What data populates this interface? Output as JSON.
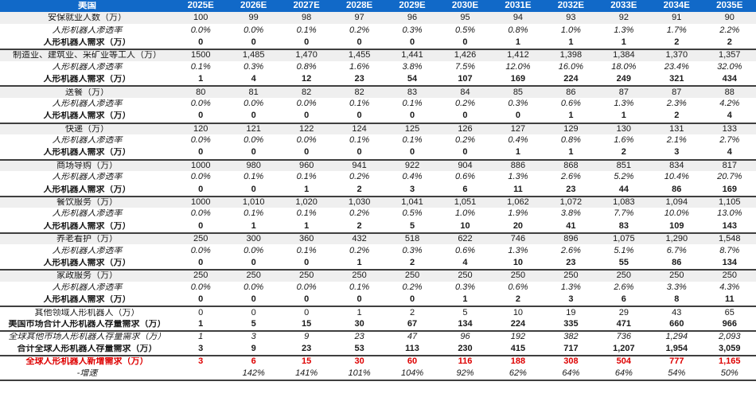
{
  "colors": {
    "header_bg": "#1169C8",
    "header_text": "#FFFFFF",
    "stripe_bg": "#EFEFEF",
    "body_text": "#1A1A1A",
    "highlight_red": "#DE0000",
    "separator": "#3F3F3F"
  },
  "chart_data": {
    "type": "table",
    "corner_label": "美国",
    "columns": [
      "2025E",
      "2026E",
      "2027E",
      "2028E",
      "2029E",
      "2030E",
      "2031E",
      "2032E",
      "2033E",
      "2034E",
      "2035E"
    ],
    "rows": [
      {
        "label": "安保就业人数（万）",
        "style": "cat",
        "sep": false,
        "values": [
          "100",
          "99",
          "98",
          "97",
          "96",
          "95",
          "94",
          "93",
          "92",
          "91",
          "90"
        ]
      },
      {
        "label": "人形机器人渗透率",
        "style": "pen",
        "sep": false,
        "values": [
          "0.0%",
          "0.0%",
          "0.1%",
          "0.2%",
          "0.3%",
          "0.5%",
          "0.8%",
          "1.0%",
          "1.3%",
          "1.7%",
          "2.2%"
        ]
      },
      {
        "label": "人形机器人需求（万）",
        "style": "dem",
        "sep": false,
        "values": [
          "0",
          "0",
          "0",
          "0",
          "0",
          "0",
          "1",
          "1",
          "1",
          "2",
          "2"
        ]
      },
      {
        "label": "制造业、建筑业、采矿业等工人（万）",
        "style": "cat",
        "sep": true,
        "values": [
          "1500",
          "1,485",
          "1,470",
          "1,455",
          "1,441",
          "1,426",
          "1,412",
          "1,398",
          "1,384",
          "1,370",
          "1,357"
        ]
      },
      {
        "label": "人形机器人渗透率",
        "style": "pen",
        "sep": false,
        "values": [
          "0.1%",
          "0.3%",
          "0.8%",
          "1.6%",
          "3.8%",
          "7.5%",
          "12.0%",
          "16.0%",
          "18.0%",
          "23.4%",
          "32.0%"
        ]
      },
      {
        "label": "人形机器人需求（万）",
        "style": "dem",
        "sep": false,
        "values": [
          "1",
          "4",
          "12",
          "23",
          "54",
          "107",
          "169",
          "224",
          "249",
          "321",
          "434"
        ]
      },
      {
        "label": "送餐（万）",
        "style": "cat",
        "sep": true,
        "values": [
          "80",
          "81",
          "82",
          "82",
          "83",
          "84",
          "85",
          "86",
          "87",
          "87",
          "88"
        ]
      },
      {
        "label": "人形机器人渗透率",
        "style": "pen",
        "sep": false,
        "values": [
          "0.0%",
          "0.0%",
          "0.0%",
          "0.1%",
          "0.1%",
          "0.2%",
          "0.3%",
          "0.6%",
          "1.3%",
          "2.3%",
          "4.2%"
        ]
      },
      {
        "label": "人形机器人需求（万）",
        "style": "dem",
        "sep": false,
        "values": [
          "0",
          "0",
          "0",
          "0",
          "0",
          "0",
          "0",
          "1",
          "1",
          "2",
          "4"
        ]
      },
      {
        "label": "快递（万）",
        "style": "cat",
        "sep": true,
        "values": [
          "120",
          "121",
          "122",
          "124",
          "125",
          "126",
          "127",
          "129",
          "130",
          "131",
          "133"
        ]
      },
      {
        "label": "人形机器人渗透率",
        "style": "pen",
        "sep": false,
        "values": [
          "0.0%",
          "0.0%",
          "0.0%",
          "0.1%",
          "0.1%",
          "0.2%",
          "0.4%",
          "0.8%",
          "1.6%",
          "2.1%",
          "2.7%"
        ]
      },
      {
        "label": "人形机器人需求（万）",
        "style": "dem",
        "sep": false,
        "values": [
          "0",
          "0",
          "0",
          "0",
          "0",
          "0",
          "1",
          "1",
          "2",
          "3",
          "4"
        ]
      },
      {
        "label": "商场导购（万）",
        "style": "cat",
        "sep": true,
        "values": [
          "1000",
          "980",
          "960",
          "941",
          "922",
          "904",
          "886",
          "868",
          "851",
          "834",
          "817"
        ]
      },
      {
        "label": "人形机器人渗透率",
        "style": "pen",
        "sep": false,
        "values": [
          "0.0%",
          "0.1%",
          "0.1%",
          "0.2%",
          "0.4%",
          "0.6%",
          "1.3%",
          "2.6%",
          "5.2%",
          "10.4%",
          "20.7%"
        ]
      },
      {
        "label": "人形机器人需求（万）",
        "style": "dem",
        "sep": false,
        "values": [
          "0",
          "0",
          "1",
          "2",
          "3",
          "6",
          "11",
          "23",
          "44",
          "86",
          "169"
        ]
      },
      {
        "label": "餐饮服务（万）",
        "style": "cat",
        "sep": true,
        "values": [
          "1000",
          "1,010",
          "1,020",
          "1,030",
          "1,041",
          "1,051",
          "1,062",
          "1,072",
          "1,083",
          "1,094",
          "1,105"
        ]
      },
      {
        "label": "人形机器人渗透率",
        "style": "pen",
        "sep": false,
        "values": [
          "0.0%",
          "0.1%",
          "0.1%",
          "0.2%",
          "0.5%",
          "1.0%",
          "1.9%",
          "3.8%",
          "7.7%",
          "10.0%",
          "13.0%"
        ]
      },
      {
        "label": "人形机器人需求（万）",
        "style": "dem",
        "sep": false,
        "values": [
          "0",
          "1",
          "1",
          "2",
          "5",
          "10",
          "20",
          "41",
          "83",
          "109",
          "143"
        ]
      },
      {
        "label": "养老看护（万）",
        "style": "cat",
        "sep": true,
        "values": [
          "250",
          "300",
          "360",
          "432",
          "518",
          "622",
          "746",
          "896",
          "1,075",
          "1,290",
          "1,548"
        ]
      },
      {
        "label": "人形机器人渗透率",
        "style": "pen",
        "sep": false,
        "values": [
          "0.0%",
          "0.0%",
          "0.1%",
          "0.2%",
          "0.3%",
          "0.6%",
          "1.3%",
          "2.6%",
          "5.1%",
          "6.7%",
          "8.7%"
        ]
      },
      {
        "label": "人形机器人需求（万）",
        "style": "dem",
        "sep": false,
        "values": [
          "0",
          "0",
          "0",
          "1",
          "2",
          "4",
          "10",
          "23",
          "55",
          "86",
          "134"
        ]
      },
      {
        "label": "家政服务（万）",
        "style": "cat",
        "sep": true,
        "values": [
          "250",
          "250",
          "250",
          "250",
          "250",
          "250",
          "250",
          "250",
          "250",
          "250",
          "250"
        ]
      },
      {
        "label": "人形机器人渗透率",
        "style": "pen",
        "sep": false,
        "values": [
          "0.0%",
          "0.0%",
          "0.0%",
          "0.1%",
          "0.2%",
          "0.3%",
          "0.6%",
          "1.3%",
          "2.6%",
          "3.3%",
          "4.3%"
        ]
      },
      {
        "label": "人形机器人需求（万）",
        "style": "dem",
        "sep": false,
        "values": [
          "0",
          "0",
          "0",
          "0",
          "0",
          "1",
          "2",
          "3",
          "6",
          "8",
          "11"
        ]
      },
      {
        "label": "其他领域人形机器人（万）",
        "style": "plain",
        "sep": true,
        "values": [
          "0",
          "0",
          "0",
          "1",
          "2",
          "5",
          "10",
          "19",
          "29",
          "43",
          "65"
        ]
      },
      {
        "label": "美国市场合计人形机器人存量需求（万）",
        "style": "bold",
        "sep": false,
        "values": [
          "1",
          "5",
          "15",
          "30",
          "67",
          "134",
          "224",
          "335",
          "471",
          "660",
          "966"
        ]
      },
      {
        "label": "全球其他市场人形机器人存量需求（万）",
        "style": "ital",
        "sep": true,
        "values": [
          "1",
          "3",
          "9",
          "23",
          "47",
          "96",
          "192",
          "382",
          "736",
          "1,294",
          "2,093"
        ]
      },
      {
        "label": "合计全球人形机器人存量需求（万）",
        "style": "bold",
        "sep": false,
        "values": [
          "3",
          "9",
          "23",
          "53",
          "113",
          "230",
          "415",
          "717",
          "1,207",
          "1,954",
          "3,059"
        ]
      },
      {
        "label": "全球人形机器人新增需求（万）",
        "style": "red",
        "sep": true,
        "values": [
          "3",
          "6",
          "15",
          "30",
          "60",
          "116",
          "188",
          "308",
          "504",
          "777",
          "1,165"
        ]
      },
      {
        "label": "-增速",
        "style": "growth",
        "sep": false,
        "values": [
          "",
          "142%",
          "141%",
          "101%",
          "104%",
          "92%",
          "62%",
          "64%",
          "64%",
          "54%",
          "50%"
        ]
      }
    ]
  }
}
